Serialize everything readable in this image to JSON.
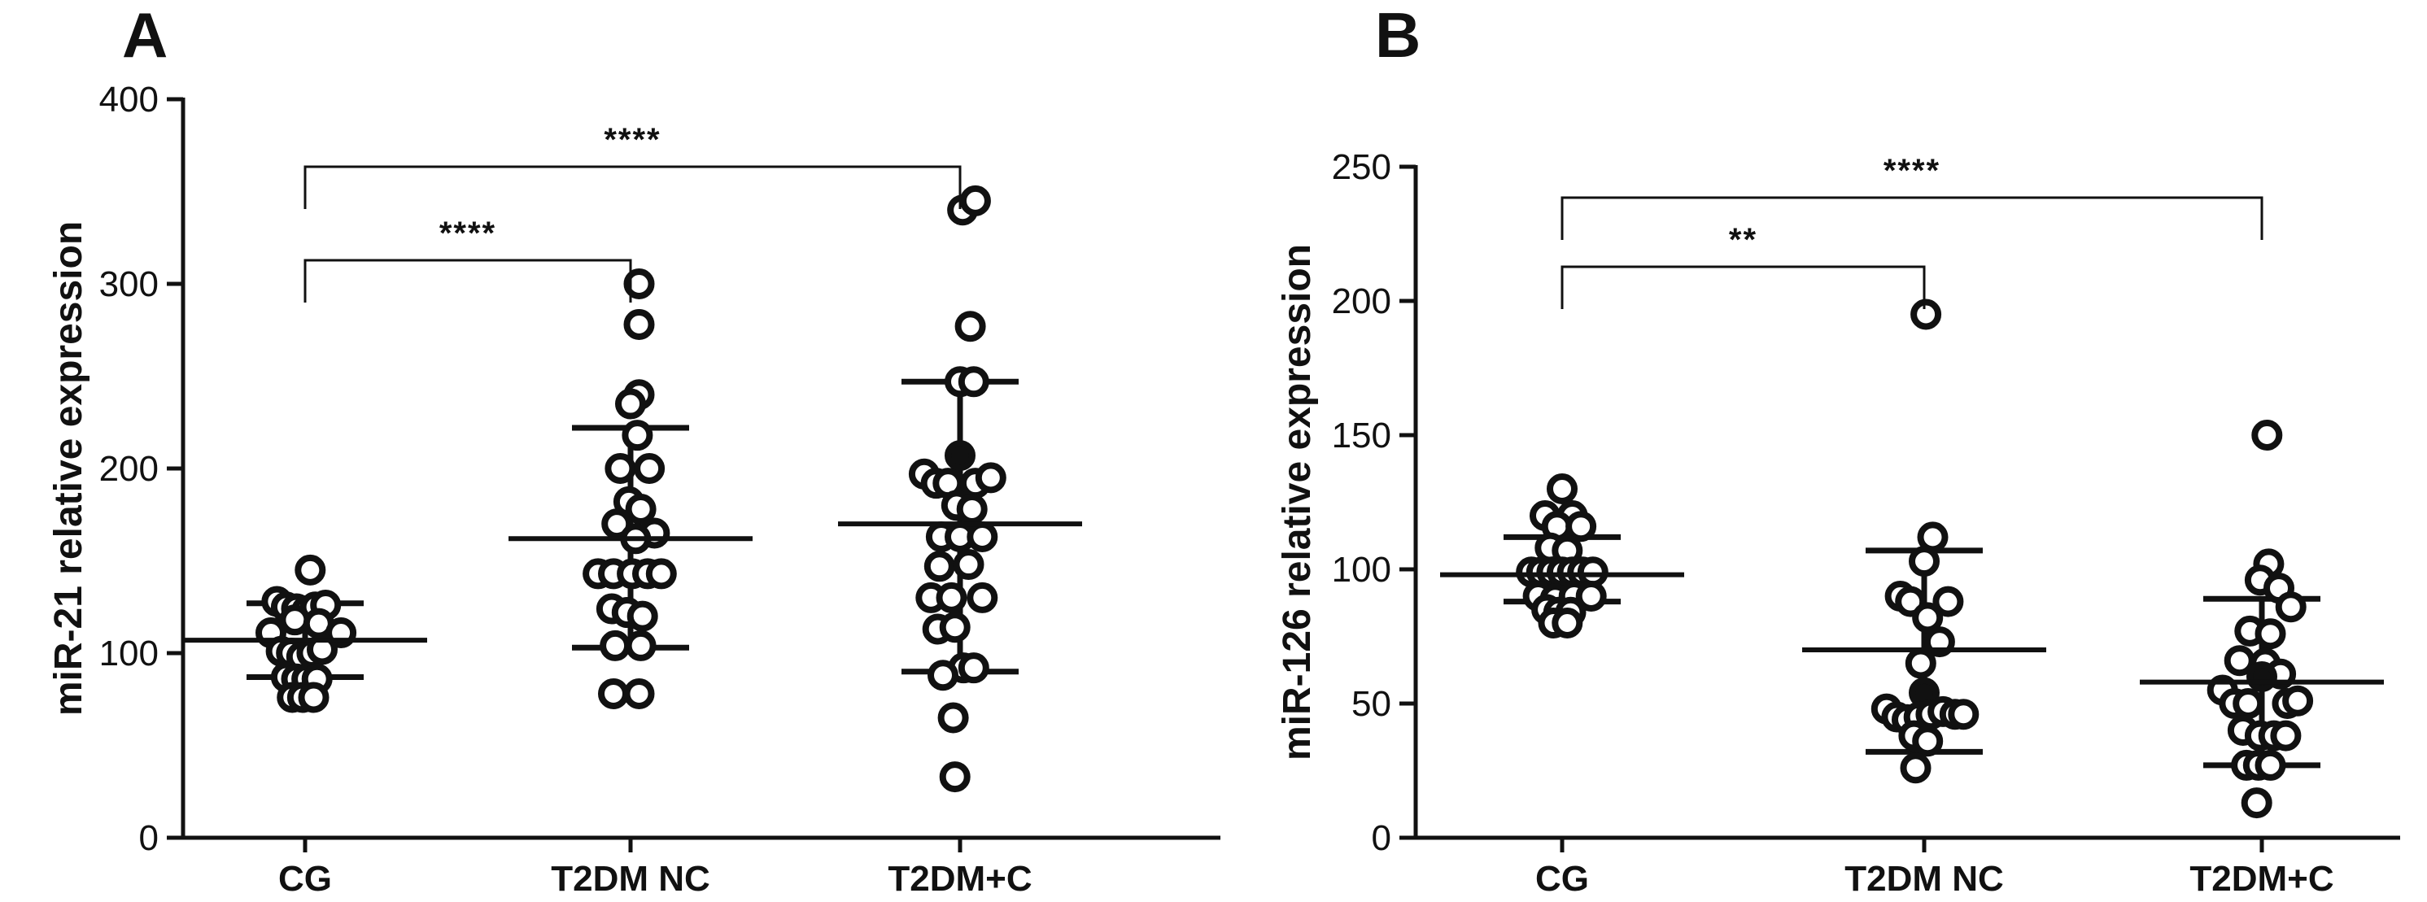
{
  "chart_data": [
    {
      "panel_label": "A",
      "type": "scatter",
      "ylabel": "miR-21 relative expression",
      "ylim": [
        0,
        400
      ],
      "yticks": [
        0,
        100,
        200,
        300,
        400
      ],
      "categories": [
        "CG",
        "T2DM NC",
        "T2DM+C"
      ],
      "series": [
        {
          "name": "CG",
          "mean": 107,
          "sd_low": 87,
          "sd_high": 127,
          "points": [
            {
              "x": -0.33,
              "y": 128
            },
            {
              "x": -0.22,
              "y": 125
            },
            {
              "x": -0.1,
              "y": 124
            },
            {
              "x": 0.02,
              "y": 123
            },
            {
              "x": 0.12,
              "y": 125
            },
            {
              "x": 0.24,
              "y": 126
            },
            {
              "x": 0.06,
              "y": 145
            },
            {
              "x": -0.12,
              "y": 118
            },
            {
              "x": 0.16,
              "y": 116
            },
            {
              "x": -0.4,
              "y": 111
            },
            {
              "x": 0.42,
              "y": 111
            },
            {
              "x": -0.28,
              "y": 101
            },
            {
              "x": -0.16,
              "y": 100
            },
            {
              "x": -0.04,
              "y": 98
            },
            {
              "x": 0.08,
              "y": 100
            },
            {
              "x": 0.2,
              "y": 102
            },
            {
              "x": -0.22,
              "y": 87
            },
            {
              "x": -0.1,
              "y": 86
            },
            {
              "x": 0.02,
              "y": 86
            },
            {
              "x": 0.14,
              "y": 86
            },
            {
              "x": -0.15,
              "y": 76
            },
            {
              "x": -0.03,
              "y": 76
            },
            {
              "x": 0.1,
              "y": 76
            }
          ]
        },
        {
          "name": "T2DM NC",
          "mean": 162,
          "sd_low": 103,
          "sd_high": 222,
          "points": [
            {
              "x": 0.1,
              "y": 300
            },
            {
              "x": 0.1,
              "y": 278
            },
            {
              "x": 0.1,
              "y": 240
            },
            {
              "x": 0.0,
              "y": 235
            },
            {
              "x": 0.08,
              "y": 218
            },
            {
              "x": -0.12,
              "y": 200
            },
            {
              "x": 0.22,
              "y": 200
            },
            {
              "x": -0.02,
              "y": 182
            },
            {
              "x": 0.12,
              "y": 178
            },
            {
              "x": -0.16,
              "y": 170
            },
            {
              "x": 0.28,
              "y": 165
            },
            {
              "x": 0.06,
              "y": 162
            },
            {
              "x": -0.38,
              "y": 143
            },
            {
              "x": -0.2,
              "y": 143
            },
            {
              "x": 0.02,
              "y": 143
            },
            {
              "x": 0.2,
              "y": 143
            },
            {
              "x": 0.36,
              "y": 143
            },
            {
              "x": -0.22,
              "y": 124
            },
            {
              "x": -0.04,
              "y": 122
            },
            {
              "x": 0.14,
              "y": 120
            },
            {
              "x": -0.18,
              "y": 104
            },
            {
              "x": 0.12,
              "y": 104
            },
            {
              "x": -0.2,
              "y": 78
            },
            {
              "x": 0.1,
              "y": 78
            }
          ]
        },
        {
          "name": "T2DM+C",
          "mean": 170,
          "sd_low": 90,
          "sd_high": 247,
          "points": [
            {
              "x": 0.03,
              "y": 340
            },
            {
              "x": 0.18,
              "y": 345
            },
            {
              "x": 0.12,
              "y": 277
            },
            {
              "x": 0.0,
              "y": 247
            },
            {
              "x": 0.16,
              "y": 247
            },
            {
              "x": 0.0,
              "y": 207,
              "filled": true
            },
            {
              "x": -0.42,
              "y": 197
            },
            {
              "x": -0.28,
              "y": 192
            },
            {
              "x": -0.14,
              "y": 192
            },
            {
              "x": 0.18,
              "y": 192
            },
            {
              "x": 0.36,
              "y": 195
            },
            {
              "x": -0.04,
              "y": 180
            },
            {
              "x": 0.14,
              "y": 178
            },
            {
              "x": -0.22,
              "y": 163
            },
            {
              "x": 0.0,
              "y": 163
            },
            {
              "x": 0.26,
              "y": 163
            },
            {
              "x": -0.24,
              "y": 147
            },
            {
              "x": 0.1,
              "y": 148
            },
            {
              "x": -0.34,
              "y": 130
            },
            {
              "x": -0.1,
              "y": 130
            },
            {
              "x": 0.26,
              "y": 130
            },
            {
              "x": -0.26,
              "y": 113
            },
            {
              "x": -0.06,
              "y": 114
            },
            {
              "x": 0.04,
              "y": 92
            },
            {
              "x": 0.16,
              "y": 92
            },
            {
              "x": -0.2,
              "y": 88
            },
            {
              "x": -0.08,
              "y": 65
            },
            {
              "x": -0.06,
              "y": 33
            }
          ]
        }
      ],
      "comparisons": [
        {
          "from": "CG",
          "to": "T2DM NC",
          "label": "****",
          "level": 1
        },
        {
          "from": "CG",
          "to": "T2DM+C",
          "label": "****",
          "level": 2
        }
      ]
    },
    {
      "panel_label": "B",
      "type": "scatter",
      "ylabel": "miR-126 relative expression",
      "ylim": [
        0,
        250
      ],
      "yticks": [
        0,
        50,
        100,
        150,
        200,
        250
      ],
      "categories": [
        "CG",
        "T2DM NC",
        "T2DM+C"
      ],
      "series": [
        {
          "name": "CG",
          "mean": 98,
          "sd_low": 88,
          "sd_high": 112,
          "points": [
            {
              "x": 0.0,
              "y": 130
            },
            {
              "x": -0.2,
              "y": 120
            },
            {
              "x": 0.12,
              "y": 120
            },
            {
              "x": -0.06,
              "y": 116
            },
            {
              "x": 0.22,
              "y": 116
            },
            {
              "x": -0.14,
              "y": 108
            },
            {
              "x": 0.06,
              "y": 107
            },
            {
              "x": -0.36,
              "y": 99
            },
            {
              "x": -0.24,
              "y": 99
            },
            {
              "x": -0.12,
              "y": 99
            },
            {
              "x": 0.0,
              "y": 99
            },
            {
              "x": 0.12,
              "y": 99
            },
            {
              "x": 0.24,
              "y": 99
            },
            {
              "x": 0.36,
              "y": 99
            },
            {
              "x": -0.28,
              "y": 90
            },
            {
              "x": -0.08,
              "y": 89
            },
            {
              "x": 0.14,
              "y": 90
            },
            {
              "x": 0.34,
              "y": 90
            },
            {
              "x": -0.18,
              "y": 85
            },
            {
              "x": -0.04,
              "y": 84
            },
            {
              "x": 0.1,
              "y": 84
            },
            {
              "x": -0.1,
              "y": 80
            },
            {
              "x": 0.06,
              "y": 80
            }
          ]
        },
        {
          "name": "T2DM NC",
          "mean": 70,
          "sd_low": 32,
          "sd_high": 107,
          "points": [
            {
              "x": 0.02,
              "y": 195
            },
            {
              "x": 0.1,
              "y": 112
            },
            {
              "x": 0.0,
              "y": 103
            },
            {
              "x": -0.28,
              "y": 90
            },
            {
              "x": -0.16,
              "y": 88
            },
            {
              "x": 0.28,
              "y": 88
            },
            {
              "x": 0.04,
              "y": 82
            },
            {
              "x": 0.18,
              "y": 73
            },
            {
              "x": -0.04,
              "y": 65
            },
            {
              "x": 0.0,
              "y": 54,
              "filled": true
            },
            {
              "x": -0.44,
              "y": 48
            },
            {
              "x": -0.32,
              "y": 45
            },
            {
              "x": -0.2,
              "y": 44
            },
            {
              "x": -0.06,
              "y": 45
            },
            {
              "x": 0.08,
              "y": 46
            },
            {
              "x": 0.22,
              "y": 47
            },
            {
              "x": 0.36,
              "y": 46
            },
            {
              "x": 0.46,
              "y": 46
            },
            {
              "x": -0.12,
              "y": 38
            },
            {
              "x": 0.04,
              "y": 36
            },
            {
              "x": -0.1,
              "y": 26
            }
          ]
        },
        {
          "name": "T2DM+C",
          "mean": 58,
          "sd_low": 27,
          "sd_high": 89,
          "points": [
            {
              "x": 0.06,
              "y": 150
            },
            {
              "x": 0.08,
              "y": 102
            },
            {
              "x": -0.02,
              "y": 96
            },
            {
              "x": 0.2,
              "y": 93
            },
            {
              "x": 0.34,
              "y": 86
            },
            {
              "x": -0.14,
              "y": 77
            },
            {
              "x": 0.1,
              "y": 76
            },
            {
              "x": -0.26,
              "y": 66
            },
            {
              "x": 0.04,
              "y": 65
            },
            {
              "x": 0.22,
              "y": 61
            },
            {
              "x": 0.0,
              "y": 60,
              "filled": true
            },
            {
              "x": -0.46,
              "y": 55
            },
            {
              "x": -0.32,
              "y": 50
            },
            {
              "x": -0.16,
              "y": 50
            },
            {
              "x": 0.3,
              "y": 50
            },
            {
              "x": 0.42,
              "y": 51
            },
            {
              "x": -0.22,
              "y": 40
            },
            {
              "x": -0.02,
              "y": 38
            },
            {
              "x": 0.14,
              "y": 38
            },
            {
              "x": 0.28,
              "y": 38
            },
            {
              "x": -0.18,
              "y": 27
            },
            {
              "x": -0.04,
              "y": 27
            },
            {
              "x": 0.1,
              "y": 27
            },
            {
              "x": -0.06,
              "y": 13
            }
          ]
        }
      ],
      "comparisons": [
        {
          "from": "CG",
          "to": "T2DM NC",
          "label": "**",
          "level": 1
        },
        {
          "from": "CG",
          "to": "T2DM+C",
          "label": "****",
          "level": 2
        }
      ]
    }
  ]
}
